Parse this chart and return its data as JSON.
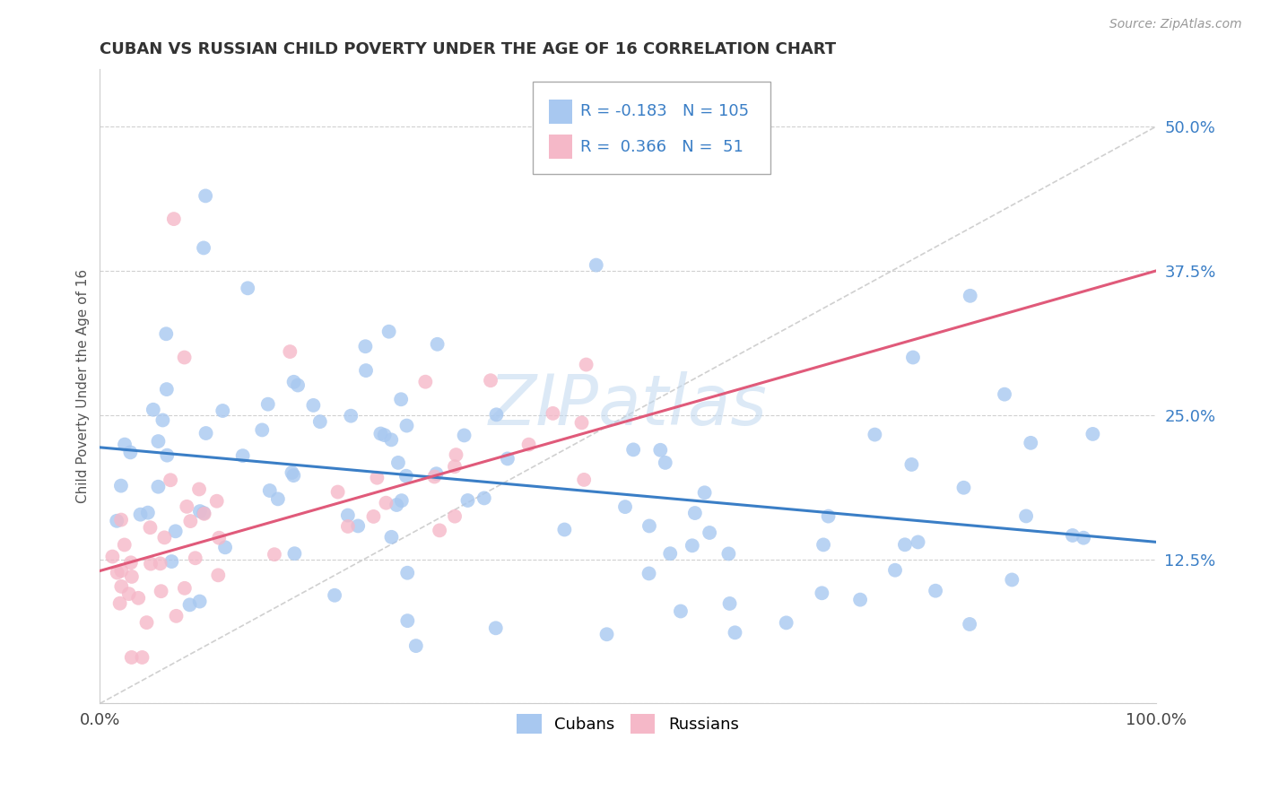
{
  "title": "CUBAN VS RUSSIAN CHILD POVERTY UNDER THE AGE OF 16 CORRELATION CHART",
  "source": "Source: ZipAtlas.com",
  "ylabel": "Child Poverty Under the Age of 16",
  "xlim": [
    0.0,
    1.0
  ],
  "ylim": [
    0.0,
    0.55
  ],
  "yticks": [
    0.0,
    0.125,
    0.25,
    0.375,
    0.5
  ],
  "ytick_labels": [
    "",
    "12.5%",
    "25.0%",
    "37.5%",
    "50.0%"
  ],
  "xtick_labels": [
    "0.0%",
    "100.0%"
  ],
  "blue_R": "-0.183",
  "blue_N": "105",
  "pink_R": "0.366",
  "pink_N": "51",
  "blue_color": "#A8C8F0",
  "pink_color": "#F5B8C8",
  "blue_line_color": "#3A7EC6",
  "pink_line_color": "#E05A7A",
  "diagonal_color": "#D0D0D0",
  "watermark": "ZIPatlas",
  "legend_text_color": "#3A7EC6",
  "blue_intercept": 0.222,
  "blue_slope": -0.082,
  "pink_intercept": 0.115,
  "pink_slope": 0.26
}
